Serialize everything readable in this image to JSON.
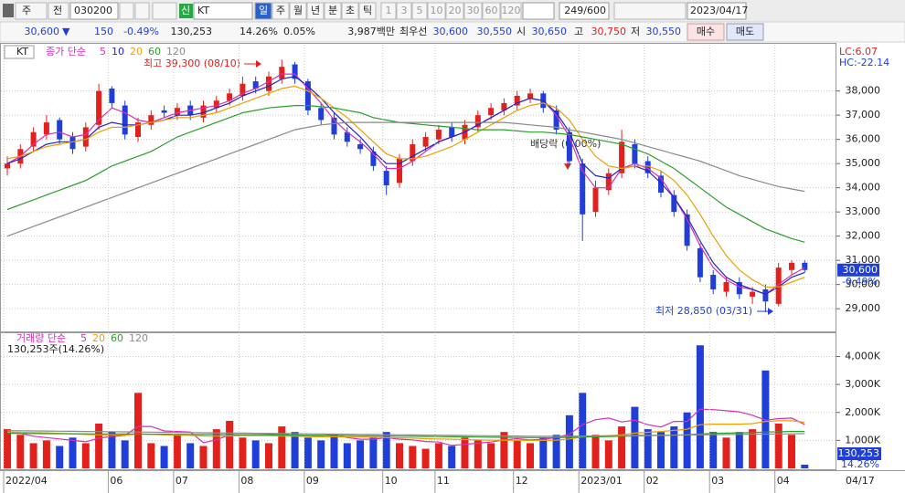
{
  "toolbar": {
    "market": "주",
    "view": "전",
    "code": "030200",
    "badge": "신",
    "name": "KT",
    "periods": [
      "일",
      "주",
      "월",
      "년",
      "분",
      "초",
      "틱"
    ],
    "intervals": [
      "1",
      "3",
      "5",
      "10",
      "20",
      "30",
      "60",
      "120"
    ],
    "count": "249/600",
    "date": "2023/04/17"
  },
  "quote": {
    "price": "30,600",
    "direction": "▼",
    "change": "150",
    "change_rate": "-0.49%",
    "volume": "130,253",
    "volume_rate": "14.26%",
    "turnover_rate": "0.05%",
    "amount": "3,987백만",
    "best_label": "최우선",
    "best_ask": "30,600",
    "best_bid": "30,550",
    "open_label": "시",
    "open": "30,650",
    "high_label": "고",
    "high": "30,750",
    "low_label": "저",
    "low": "30,550",
    "buy": "매수",
    "sell": "매도"
  },
  "chart_data": [
    {
      "type": "candlestick",
      "label": "KT",
      "legend_title": "종가 단순",
      "lc_label": "LC:6.07",
      "hc_label": "HC:-22.14",
      "annotations": {
        "high": "최고 39,300 (08/10)",
        "low": "최저 28,850 (03/31)",
        "dividend": "배당락 (0.00%)"
      },
      "last_price_label": "30,600",
      "last_change_label": "-0.49%",
      "end_date_label": "04/17",
      "up_color": "#e3211c",
      "down_color": "#1f3fd8",
      "grid": true,
      "categories": [
        "2022/04",
        null,
        null,
        null,
        null,
        null,
        null,
        null,
        "06",
        null,
        null,
        null,
        null,
        "07",
        null,
        null,
        null,
        null,
        "08",
        null,
        null,
        null,
        null,
        "09",
        null,
        null,
        null,
        null,
        null,
        "10",
        null,
        null,
        null,
        "11",
        null,
        null,
        null,
        null,
        null,
        "12",
        null,
        null,
        null,
        null,
        "2023/01",
        null,
        null,
        null,
        null,
        "02",
        null,
        null,
        null,
        null,
        "03",
        null,
        null,
        null,
        null,
        "04",
        null,
        null
      ],
      "open": [
        34800,
        35000,
        35700,
        36200,
        36800,
        36100,
        35700,
        36600,
        38100,
        37400,
        36100,
        36600,
        37200,
        37000,
        37400,
        36900,
        37300,
        37600,
        37800,
        38400,
        38000,
        38500,
        39100,
        38400,
        37300,
        36900,
        36300,
        35800,
        35500,
        34700,
        34200,
        35100,
        35700,
        36000,
        36500,
        36000,
        36500,
        37000,
        37200,
        37400,
        37700,
        37900,
        37200,
        36300,
        35000,
        33000,
        33900,
        34600,
        35800,
        35100,
        34500,
        33700,
        32900,
        31500,
        30400,
        29700,
        30100,
        29500,
        29800,
        29200,
        30600,
        30900
      ],
      "high": [
        35300,
        35800,
        36500,
        37000,
        36900,
        36300,
        36700,
        38300,
        38200,
        37600,
        36900,
        37200,
        37400,
        37500,
        37600,
        37600,
        37800,
        38100,
        38600,
        38600,
        38800,
        39300,
        39200,
        38500,
        37500,
        37100,
        36500,
        36000,
        35700,
        34900,
        35400,
        36000,
        36300,
        36600,
        36700,
        36800,
        37200,
        37500,
        37700,
        38000,
        38100,
        38000,
        37400,
        36500,
        35200,
        34300,
        34800,
        36400,
        36000,
        35300,
        34700,
        33900,
        33100,
        31700,
        30600,
        30300,
        30300,
        29900,
        30000,
        30900,
        31000,
        31000
      ],
      "low": [
        34500,
        34800,
        35500,
        36000,
        35800,
        35400,
        35500,
        36400,
        37300,
        36000,
        35900,
        36400,
        36900,
        36800,
        36800,
        36700,
        37100,
        37400,
        37600,
        37900,
        37800,
        38300,
        38300,
        37000,
        36600,
        36000,
        35700,
        35400,
        34700,
        33700,
        34000,
        34900,
        35500,
        35800,
        35900,
        35800,
        36300,
        36800,
        37000,
        37200,
        37500,
        37100,
        36200,
        34900,
        31800,
        32800,
        33700,
        34400,
        34800,
        34400,
        33600,
        32800,
        31400,
        30100,
        29600,
        29500,
        29400,
        29200,
        28850,
        29100,
        30400,
        30500
      ],
      "close": [
        35000,
        35600,
        36300,
        36700,
        36000,
        35600,
        36500,
        38000,
        37500,
        36200,
        36700,
        37000,
        37100,
        37300,
        37000,
        37400,
        37600,
        37900,
        38300,
        38100,
        38600,
        39000,
        38500,
        37200,
        36800,
        36200,
        35900,
        35600,
        34900,
        34100,
        35200,
        35800,
        36100,
        36400,
        36100,
        36600,
        37000,
        37300,
        37500,
        37800,
        37900,
        37300,
        36400,
        35100,
        32900,
        34000,
        34600,
        35900,
        35000,
        34600,
        33800,
        33000,
        31600,
        30300,
        29800,
        30100,
        29600,
        29700,
        29300,
        30700,
        30900,
        30600
      ],
      "series": [
        {
          "name": "5",
          "color": "#d830b8",
          "values": [
            35000,
            35300,
            35800,
            36200,
            36300,
            36100,
            36200,
            36800,
            37300,
            37100,
            36800,
            36700,
            36900,
            37100,
            37200,
            37300,
            37400,
            37600,
            37900,
            38100,
            38400,
            38700,
            38700,
            38100,
            37500,
            36800,
            36300,
            35900,
            35400,
            34800,
            34800,
            35100,
            35500,
            35900,
            36100,
            36300,
            36600,
            36900,
            37200,
            37500,
            37700,
            37600,
            37000,
            36100,
            34700,
            34000,
            34000,
            34800,
            35000,
            34800,
            34400,
            33600,
            32700,
            31600,
            30700,
            30200,
            29900,
            29800,
            29600,
            30000,
            30400,
            30700
          ]
        },
        {
          "name": "10",
          "color": "#2323c8",
          "values": [
            35000,
            35200,
            35500,
            35800,
            35900,
            35900,
            36000,
            36500,
            36700,
            36600,
            36600,
            36700,
            36800,
            37000,
            37000,
            37100,
            37300,
            37500,
            37800,
            38000,
            38200,
            38500,
            38600,
            38200,
            37700,
            37100,
            36600,
            36100,
            35500,
            35000,
            35000,
            35300,
            35600,
            35900,
            36100,
            36300,
            36600,
            36900,
            37200,
            37500,
            37700,
            37600,
            37100,
            36300,
            35000,
            34500,
            34400,
            34800,
            34900,
            34700,
            34200,
            33600,
            32800,
            31800,
            30900,
            30300,
            30000,
            29800,
            29600,
            29900,
            30300,
            30500
          ]
        },
        {
          "name": "20",
          "color": "#eea000",
          "values": [
            35200,
            35300,
            35500,
            35700,
            35800,
            35900,
            36000,
            36300,
            36500,
            36500,
            36600,
            36700,
            36800,
            36900,
            36900,
            37000,
            37100,
            37300,
            37500,
            37700,
            37900,
            38100,
            38200,
            38000,
            37700,
            37300,
            36900,
            36400,
            35900,
            35400,
            35200,
            35200,
            35300,
            35500,
            35700,
            36000,
            36300,
            36600,
            36900,
            37200,
            37400,
            37500,
            37300,
            36800,
            36000,
            35300,
            34900,
            34800,
            34900,
            34900,
            34700,
            34300,
            33700,
            32900,
            32000,
            31200,
            30600,
            30200,
            29900,
            29900,
            30100,
            30300
          ]
        },
        {
          "name": "60",
          "color": "#2aa02a",
          "values": [
            33100,
            33300,
            33500,
            33700,
            33900,
            34100,
            34300,
            34600,
            34900,
            35100,
            35300,
            35500,
            35800,
            36100,
            36300,
            36500,
            36700,
            36900,
            37100,
            37200,
            37300,
            37350,
            37400,
            37400,
            37350,
            37300,
            37200,
            37100,
            36900,
            36800,
            36700,
            36650,
            36600,
            36550,
            36500,
            36450,
            36400,
            36400,
            36400,
            36350,
            36300,
            36300,
            36250,
            36200,
            36100,
            36000,
            35900,
            35800,
            35600,
            35400,
            35100,
            34800,
            34400,
            34000,
            33600,
            33200,
            32900,
            32600,
            32300,
            32100,
            31900,
            31750
          ]
        },
        {
          "name": "120",
          "color": "#8a8a8a",
          "values": [
            32000,
            32200,
            32400,
            32600,
            32800,
            33000,
            33200,
            33400,
            33600,
            33800,
            34000,
            34200,
            34400,
            34600,
            34800,
            35000,
            35200,
            35400,
            35600,
            35800,
            36000,
            36200,
            36400,
            36500,
            36600,
            36650,
            36700,
            36700,
            36700,
            36700,
            36700,
            36700,
            36700,
            36700,
            36700,
            36700,
            36700,
            36700,
            36700,
            36650,
            36600,
            36550,
            36500,
            36400,
            36300,
            36200,
            36100,
            36000,
            35850,
            35700,
            35550,
            35400,
            35250,
            35100,
            34900,
            34700,
            34500,
            34350,
            34200,
            34050,
            33950,
            33850
          ]
        }
      ],
      "ylim": [
        28100,
        39950
      ],
      "yticks": [
        {
          "value": 29000,
          "label": "29,000"
        },
        {
          "value": 30000,
          "label": "30,000"
        },
        {
          "value": 31000,
          "label": "31,000"
        },
        {
          "value": 32000,
          "label": "32,000"
        },
        {
          "value": 33000,
          "label": "33,000"
        },
        {
          "value": 34000,
          "label": "34,000"
        },
        {
          "value": 35000,
          "label": "35,000"
        },
        {
          "value": 36000,
          "label": "36,000"
        },
        {
          "value": 37000,
          "label": "37,000"
        },
        {
          "value": 38000,
          "label": "38,000"
        }
      ]
    },
    {
      "type": "bar",
      "legend_title": "거래량 단순",
      "current_label": "130,253주(14.26%)",
      "last_value_label": "130,253",
      "last_ratio_label": "14.26%",
      "grid": true,
      "values": [
        1400,
        1200,
        900,
        1000,
        800,
        1100,
        900,
        1600,
        1300,
        1000,
        2700,
        900,
        800,
        1200,
        900,
        800,
        1400,
        1700,
        1100,
        1000,
        900,
        1500,
        1300,
        1100,
        1000,
        1200,
        900,
        1000,
        1100,
        1300,
        900,
        800,
        700,
        900,
        800,
        1100,
        1000,
        900,
        1300,
        1000,
        900,
        1100,
        1200,
        1900,
        2700,
        1200,
        1000,
        1500,
        2200,
        1400,
        1300,
        1500,
        2000,
        4400,
        1300,
        1100,
        1300,
        1400,
        3500,
        1600,
        1200,
        130.253
      ],
      "series": [
        {
          "name": "5",
          "color": "#d830b8",
          "values": [
            1300,
            1250,
            1150,
            1100,
            1050,
            1000,
            950,
            1080,
            1140,
            1180,
            1500,
            1500,
            1340,
            1320,
            1300,
            920,
            1020,
            1200,
            1180,
            1200,
            1220,
            1240,
            1160,
            1160,
            1160,
            1220,
            1100,
            1040,
            1040,
            1100,
            1040,
            1020,
            960,
            940,
            820,
            860,
            900,
            940,
            1020,
            1060,
            1020,
            1040,
            1100,
            1220,
            1560,
            1740,
            1800,
            1660,
            1720,
            1560,
            1480,
            1680,
            1680,
            2120,
            2100,
            2060,
            2020,
            1900,
            1720,
            1780,
            1800,
            1570
          ]
        },
        {
          "name": "20",
          "color": "#eea000",
          "values": [
            1300,
            1290,
            1280,
            1270,
            1250,
            1230,
            1210,
            1200,
            1200,
            1190,
            1230,
            1220,
            1200,
            1190,
            1180,
            1160,
            1150,
            1160,
            1170,
            1170,
            1170,
            1150,
            1150,
            1140,
            1130,
            1130,
            1120,
            1120,
            1110,
            1100,
            1090,
            1080,
            1060,
            1050,
            1040,
            1030,
            1020,
            1010,
            1010,
            1000,
            1000,
            1000,
            1010,
            1050,
            1120,
            1150,
            1170,
            1200,
            1260,
            1290,
            1320,
            1360,
            1400,
            1560,
            1580,
            1580,
            1580,
            1600,
            1680,
            1700,
            1700,
            1650
          ]
        },
        {
          "name": "60",
          "color": "#2aa02a",
          "values": [
            1250,
            1248,
            1245,
            1242,
            1240,
            1238,
            1235,
            1232,
            1230,
            1228,
            1225,
            1222,
            1220,
            1218,
            1215,
            1212,
            1210,
            1208,
            1205,
            1202,
            1200,
            1195,
            1190,
            1185,
            1180,
            1175,
            1170,
            1165,
            1160,
            1155,
            1150,
            1145,
            1140,
            1135,
            1130,
            1125,
            1120,
            1115,
            1110,
            1105,
            1100,
            1100,
            1100,
            1110,
            1120,
            1130,
            1140,
            1150,
            1160,
            1170,
            1180,
            1190,
            1200,
            1230,
            1250,
            1260,
            1270,
            1280,
            1300,
            1310,
            1320,
            1320
          ]
        },
        {
          "name": "120",
          "color": "#8a8a8a",
          "values": [
            1350,
            1345,
            1340,
            1335,
            1330,
            1325,
            1320,
            1315,
            1310,
            1305,
            1300,
            1295,
            1290,
            1285,
            1280,
            1275,
            1270,
            1265,
            1260,
            1255,
            1250,
            1245,
            1240,
            1235,
            1230,
            1225,
            1220,
            1215,
            1210,
            1205,
            1200,
            1195,
            1190,
            1185,
            1180,
            1175,
            1170,
            1165,
            1160,
            1155,
            1150,
            1150,
            1150,
            1150,
            1155,
            1160,
            1165,
            1170,
            1175,
            1180,
            1185,
            1190,
            1195,
            1200,
            1205,
            1210,
            1215,
            1220,
            1225,
            1230,
            1235,
            1240
          ]
        }
      ],
      "ylim": [
        0,
        4800
      ],
      "yticks": [
        {
          "value": 1000,
          "label": "1,000K"
        },
        {
          "value": 2000,
          "label": "2,000K"
        },
        {
          "value": 3000,
          "label": "3,000K"
        },
        {
          "value": 4000,
          "label": "4,000K"
        }
      ]
    }
  ]
}
